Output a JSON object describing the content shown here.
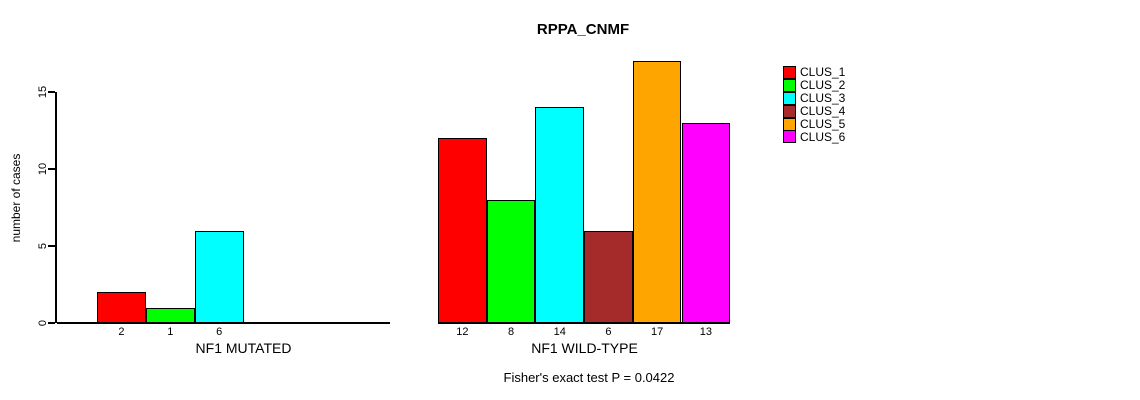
{
  "chart_data": {
    "type": "bar",
    "title": "RPPA_CNMF",
    "ylabel": "number of cases",
    "ylim": [
      0,
      17
    ],
    "yticks": [
      0,
      5,
      10,
      15
    ],
    "grid": false,
    "legend_position": "right",
    "clusters": [
      "CLUS_1",
      "CLUS_2",
      "CLUS_3",
      "CLUS_4",
      "CLUS_5",
      "CLUS_6"
    ],
    "colors": [
      "#FF0000",
      "#00FF00",
      "#00FFFF",
      "#A52A2A",
      "#FFA500",
      "#FF00FF"
    ],
    "groups": [
      {
        "label": "NF1 MUTATED",
        "values": [
          2,
          1,
          6,
          0,
          0,
          0
        ],
        "bar_labels": [
          "2",
          "1",
          "6",
          "",
          "",
          ""
        ]
      },
      {
        "label": "NF1 WILD-TYPE",
        "values": [
          12,
          8,
          14,
          6,
          17,
          13
        ],
        "bar_labels": [
          "12",
          "8",
          "14",
          "6",
          "17",
          "13"
        ]
      }
    ],
    "annotation": "Fisher's exact test P = 0.0422"
  }
}
